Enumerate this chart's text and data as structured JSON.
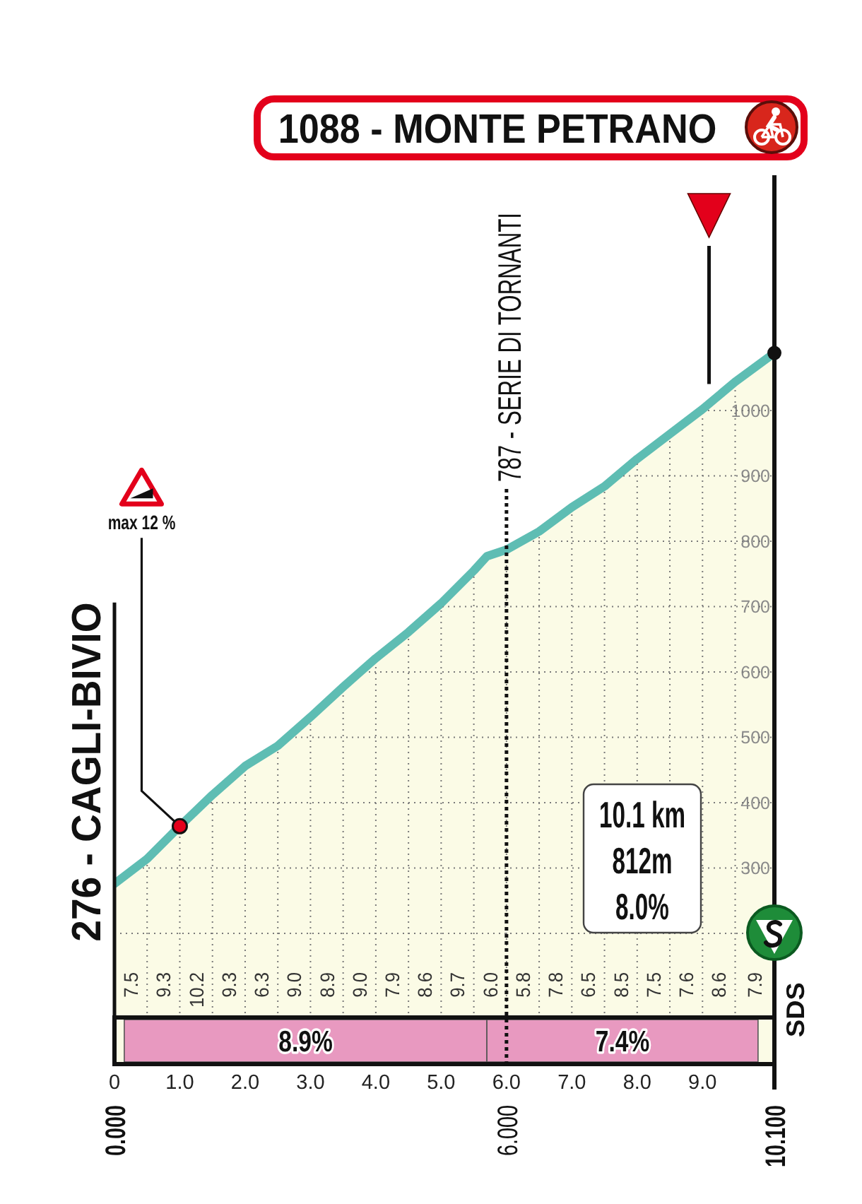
{
  "chart_data": {
    "type": "area",
    "title": "1088 - MONTE PETRANO",
    "x": [
      0,
      0.5,
      1,
      1.5,
      2,
      2.5,
      3,
      3.5,
      4,
      4.5,
      5,
      5.5,
      5.7,
      6,
      6.5,
      7,
      7.5,
      8,
      8.5,
      9,
      9.5,
      10.1
    ],
    "values": [
      276,
      314,
      364,
      412,
      456,
      487,
      531,
      577,
      621,
      661,
      705,
      755,
      777,
      787,
      815,
      852,
      884,
      926,
      964,
      1002,
      1044,
      1088
    ],
    "color": "#5ebdb3",
    "xlim": [
      0,
      10.1
    ],
    "xticks": [
      0,
      {
        "value": 0.5,
        "label": null
      },
      {
        "value": 1,
        "label": "1.0"
      },
      {
        "value": 1.5,
        "label": null
      },
      {
        "value": 2,
        "label": "2.0"
      },
      {
        "value": 2.5,
        "label": null
      },
      {
        "value": 3,
        "label": "3.0"
      },
      {
        "value": 3.5,
        "label": null
      },
      {
        "value": 4,
        "label": "4.0"
      },
      {
        "value": 4.5,
        "label": null
      },
      {
        "value": 5,
        "label": "5.0"
      },
      {
        "value": 5.5,
        "label": null
      },
      {
        "value": 6,
        "label": "6.0"
      },
      {
        "value": 6.5,
        "label": null
      },
      {
        "value": 7,
        "label": "7.0"
      },
      {
        "value": 7.5,
        "label": null
      },
      {
        "value": 8,
        "label": "8.0"
      },
      {
        "value": 8.5,
        "label": null
      },
      {
        "value": 9,
        "label": "9.0"
      },
      {
        "value": 9.5,
        "label": null
      }
    ],
    "ylim": [
      0,
      1360
    ],
    "yticks": [
      {
        "value": 200,
        "label": null
      },
      300,
      400,
      500,
      600,
      700,
      800,
      900,
      1000
    ],
    "grid": true,
    "ref_lines": [
      {
        "axis": "x",
        "value": 9.1
      }
    ],
    "bands": [
      {
        "axis": "x",
        "from": 0.15,
        "to": 5.7,
        "label": "8.9%",
        "color": "#e899c0"
      },
      {
        "axis": "x",
        "from": 5.7,
        "to": 9.85,
        "label": "7.4%",
        "color": "#e899c0"
      }
    ],
    "annotations": [
      {
        "text": "276 - CAGLI-BIVIO",
        "x": 0,
        "y": 276
      },
      {
        "text": "max 12 %",
        "x": 1,
        "y": 364
      },
      {
        "text": "787 - SERIE DI TORNANTI",
        "x": 6,
        "y": 787
      },
      "10.1 km",
      "812m",
      "8.0%",
      "SDS",
      "0.000",
      "6.000",
      "10.100",
      "7.5",
      "9.3",
      "10.2",
      "9.3",
      "6.3",
      "9.0",
      "8.9",
      "9.0",
      "7.9",
      "8.6",
      "9.7",
      "6.0",
      "5.8",
      "7.8",
      "6.5",
      "8.5",
      "7.5",
      "7.6",
      "8.6",
      "7.9"
    ]
  }
}
